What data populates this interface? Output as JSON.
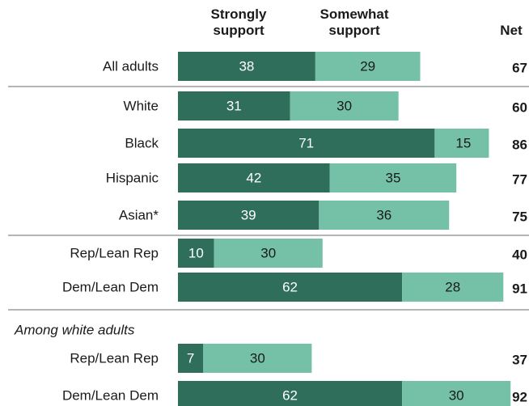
{
  "headers": {
    "strongly": "Strongly\nsupport",
    "somewhat": "Somewhat\nsupport",
    "net": "Net"
  },
  "colors": {
    "strongly": "#2f6e5a",
    "somewhat": "#74c1a7",
    "bar_text": "#ffffff",
    "label_text": "#1a1a1a"
  },
  "chart_data": {
    "type": "bar",
    "orientation": "horizontal",
    "stacked": true,
    "series": [
      {
        "name": "Strongly support"
      },
      {
        "name": "Somewhat support"
      }
    ],
    "xlim": [
      0,
      100
    ],
    "groups": [
      {
        "label": "",
        "rows": [
          {
            "category": "All adults",
            "strongly": 38,
            "somewhat": 29,
            "net": 67
          }
        ]
      },
      {
        "label": "",
        "rows": [
          {
            "category": "White",
            "strongly": 31,
            "somewhat": 30,
            "net": 60
          },
          {
            "category": "Black",
            "strongly": 71,
            "somewhat": 15,
            "net": 86
          },
          {
            "category": "Hispanic",
            "strongly": 42,
            "somewhat": 35,
            "net": 77
          },
          {
            "category": "Asian*",
            "strongly": 39,
            "somewhat": 36,
            "net": 75
          }
        ]
      },
      {
        "label": "",
        "rows": [
          {
            "category": "Rep/Lean Rep",
            "strongly": 10,
            "somewhat": 30,
            "net": 40
          },
          {
            "category": "Dem/Lean Dem",
            "strongly": 62,
            "somewhat": 28,
            "net": 91
          }
        ]
      },
      {
        "label": "Among white adults",
        "rows": [
          {
            "category": "Rep/Lean Rep",
            "strongly": 7,
            "somewhat": 30,
            "net": 37
          },
          {
            "category": "Dem/Lean Dem",
            "strongly": 62,
            "somewhat": 30,
            "net": 92
          }
        ]
      }
    ]
  }
}
